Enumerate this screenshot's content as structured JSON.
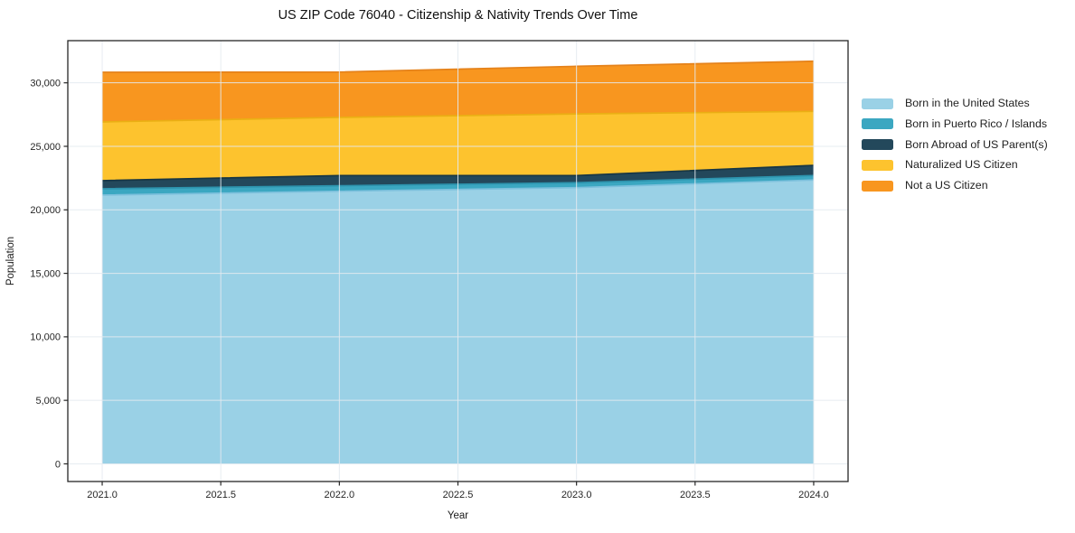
{
  "chart_data": {
    "type": "area",
    "stacked": true,
    "title": "US ZIP Code 76040 - Citizenship & Nativity Trends Over Time",
    "xlabel": "Year",
    "ylabel": "Population",
    "x": [
      2021,
      2022,
      2023,
      2024
    ],
    "series": [
      {
        "name": "Born in the United States",
        "color": "#9ad1e6",
        "edge_color": "#7cc0dc",
        "values": [
          21160,
          21465,
          21750,
          22350
        ]
      },
      {
        "name": "Born in Puerto Rico / Islands",
        "color": "#3ba7c1",
        "edge_color": "#2d93ad",
        "values": [
          500,
          430,
          385,
          350
        ]
      },
      {
        "name": "Born Abroad of US Parent(s)",
        "color": "#23485b",
        "edge_color": "#173644",
        "values": [
          640,
          805,
          565,
          800
        ]
      },
      {
        "name": "Naturalized US Citizen",
        "color": "#fdc32e",
        "edge_color": "#eaaf14",
        "values": [
          4620,
          4580,
          4850,
          4250
        ]
      },
      {
        "name": "Not a US Citizen",
        "color": "#f8961f",
        "edge_color": "#e5821a",
        "values": [
          3910,
          3570,
          3750,
          3950
        ]
      }
    ],
    "stack_totals": [
      30830,
      30850,
      31300,
      31700
    ],
    "xticks": [
      2021.0,
      2021.5,
      2022.0,
      2022.5,
      2023.0,
      2023.5,
      2024.0
    ],
    "xtick_labels": [
      "2021.0",
      "2021.5",
      "2022.0",
      "2022.5",
      "2023.0",
      "2023.5",
      "2024.0"
    ],
    "yticks": [
      0,
      5000,
      10000,
      15000,
      20000,
      25000,
      30000
    ],
    "ytick_labels": [
      "0",
      "5,000",
      "10,000",
      "15,000",
      "20,000",
      "25,000",
      "30,000"
    ],
    "xlim": [
      2020.855,
      2024.145
    ],
    "ylim": [
      -1390,
      33320
    ],
    "grid": true,
    "grid_color": "#e3eaf0",
    "spine_color": "#262626",
    "legend_position": "right"
  }
}
